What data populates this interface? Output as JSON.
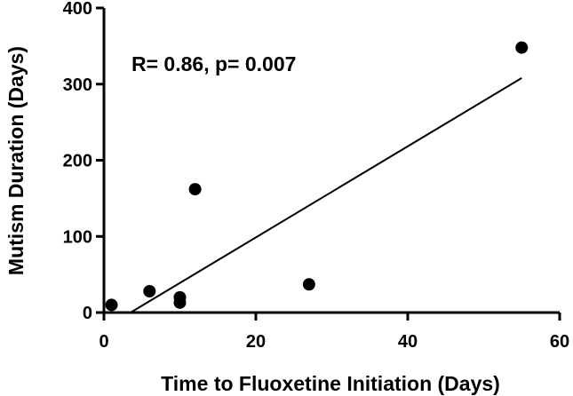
{
  "chart_data": {
    "type": "scatter",
    "title": "",
    "xlabel": "Time to Fluoxetine Initiation (Days)",
    "ylabel": "Mutism Duration (Days)",
    "xlim": [
      0,
      60
    ],
    "ylim": [
      0,
      400
    ],
    "x_ticks": [
      0,
      20,
      40,
      60
    ],
    "y_ticks": [
      0,
      100,
      200,
      300,
      400
    ],
    "grid": false,
    "annotation": "R= 0.86, p= 0.007",
    "points": [
      {
        "x": 1,
        "y": 10
      },
      {
        "x": 6,
        "y": 28
      },
      {
        "x": 10,
        "y": 13
      },
      {
        "x": 10,
        "y": 20
      },
      {
        "x": 12,
        "y": 162
      },
      {
        "x": 27,
        "y": 37
      },
      {
        "x": 55,
        "y": 348
      }
    ],
    "regression_line": {
      "x_start": 3.5,
      "y_start": 0,
      "x_end": 55,
      "y_end": 308
    }
  }
}
